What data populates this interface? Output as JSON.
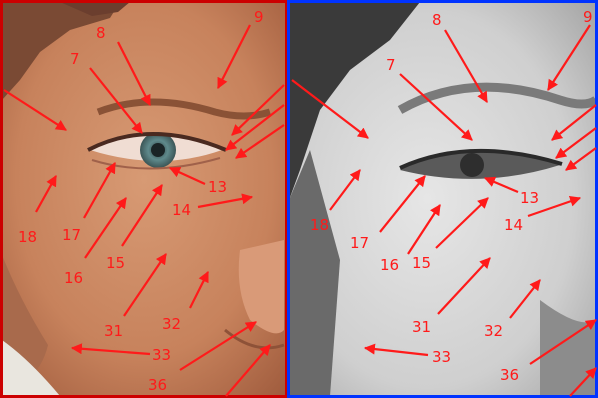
{
  "annotation_color": "#ff1a1a",
  "left_border_color": "#cc0000",
  "right_border_color": "#0033ff",
  "left_panel": {
    "labels": [
      "8",
      "9",
      "7",
      "13",
      "14",
      "18",
      "17",
      "16",
      "15",
      "31",
      "32",
      "33",
      "36"
    ]
  },
  "right_panel": {
    "labels": [
      "8",
      "9",
      "7",
      "13",
      "14",
      "18",
      "17",
      "16",
      "15",
      "31",
      "32",
      "33",
      "36"
    ]
  }
}
